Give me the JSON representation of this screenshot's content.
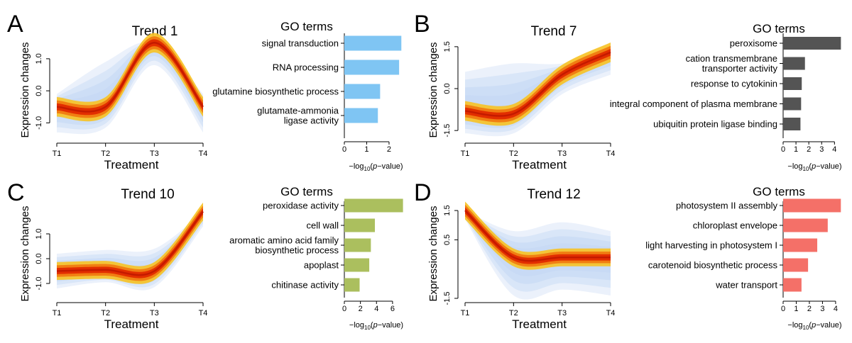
{
  "colors": {
    "trend_line": "#c41a00",
    "band_core": "#e22e00",
    "band_mid": "#f07a10",
    "band_outer": "#f7c224",
    "envelope": "#c5d8f4",
    "axis": "#000000"
  },
  "chart_data": [
    {
      "type": "line",
      "panel_letter": "A",
      "title": "Trend 1",
      "xlabel": "Treatment",
      "ylabel": "Expression changes",
      "x": [
        "T1",
        "T2",
        "T3",
        "T4"
      ],
      "trend_values": [
        -0.5,
        -0.5,
        1.5,
        -0.5
      ],
      "envelope_upper": [
        -0.1,
        0.9,
        1.5,
        -0.1
      ],
      "envelope_lower": [
        -1.3,
        -1.15,
        0.8,
        -1.3
      ],
      "ylim": [
        -1.5,
        1.55
      ],
      "yticks": [
        -1.0,
        0.0,
        1.0
      ],
      "ytick_labels": [
        "-1.0",
        "0.0",
        "1.0"
      ],
      "go": {
        "title": "GO terms",
        "xlabel": "−log10(p−value)",
        "color": "#7fc5f3",
        "xlim": [
          0,
          2.7
        ],
        "xticks": [
          0,
          1,
          2
        ],
        "terms": [
          {
            "lines": [
              "signal transduction"
            ],
            "value": 2.55
          },
          {
            "lines": [
              "RNA processing"
            ],
            "value": 2.45
          },
          {
            "lines": [
              "glutamine biosynthetic process"
            ],
            "value": 1.6
          },
          {
            "lines": [
              "glutamate-ammonia",
              "ligase activity"
            ],
            "value": 1.5
          }
        ]
      }
    },
    {
      "type": "line",
      "panel_letter": "B",
      "title": "Trend 7",
      "xlabel": "Treatment",
      "ylabel": "Expression changes",
      "x": [
        "T1",
        "T2",
        "T3",
        "T4"
      ],
      "trend_values": [
        -0.8,
        -0.9,
        0.5,
        1.3
      ],
      "envelope_upper": [
        0.6,
        0.9,
        0.9,
        1.4
      ],
      "envelope_lower": [
        -1.6,
        -1.6,
        -0.2,
        0.5
      ],
      "ylim": [
        -1.8,
        1.7
      ],
      "yticks": [
        -1.5,
        0.0,
        1.5
      ],
      "ytick_labels": [
        "-1.5",
        "0.0",
        "1.5"
      ],
      "go": {
        "title": "GO terms",
        "xlabel": "−log10(p−value)",
        "color": "#545454",
        "xlim": [
          0,
          4.7
        ],
        "xticks": [
          0,
          1,
          2,
          3,
          4
        ],
        "terms": [
          {
            "lines": [
              "peroxisome"
            ],
            "value": 4.5
          },
          {
            "lines": [
              "cation transmembrane",
              "transporter activity"
            ],
            "value": 1.7
          },
          {
            "lines": [
              "response to cytokinin"
            ],
            "value": 1.45
          },
          {
            "lines": [
              "integral component of plasma membrane"
            ],
            "value": 1.4
          },
          {
            "lines": [
              "ubiquitin protein ligase binding"
            ],
            "value": 1.35
          }
        ]
      }
    },
    {
      "type": "line",
      "panel_letter": "C",
      "title": "Trend 10",
      "xlabel": "Treatment",
      "ylabel": "Expression changes",
      "x": [
        "T1",
        "T2",
        "T3",
        "T4"
      ],
      "trend_values": [
        -0.5,
        -0.45,
        -0.5,
        1.9
      ],
      "envelope_upper": [
        0.2,
        0.35,
        0.4,
        1.9
      ],
      "envelope_lower": [
        -1.2,
        -0.95,
        -1.15,
        1.3
      ],
      "ylim": [
        -1.6,
        2.0
      ],
      "yticks": [
        -1.0,
        0.0,
        1.0
      ],
      "ytick_labels": [
        "-1.0",
        "0.0",
        "1.0"
      ],
      "go": {
        "title": "GO terms",
        "xlabel": "−log10(p−value)",
        "color": "#abbf5e",
        "xlim": [
          0,
          7.6
        ],
        "xticks": [
          0,
          2,
          4,
          6
        ],
        "terms": [
          {
            "lines": [
              "peroxidase activity"
            ],
            "value": 7.3
          },
          {
            "lines": [
              "cell wall"
            ],
            "value": 3.8
          },
          {
            "lines": [
              "aromatic amino acid family",
              "biosynthetic process"
            ],
            "value": 3.3
          },
          {
            "lines": [
              "apoplast"
            ],
            "value": 3.1
          },
          {
            "lines": [
              "chitinase activity"
            ],
            "value": 1.9
          }
        ]
      }
    },
    {
      "type": "line",
      "panel_letter": "D",
      "title": "Trend 12",
      "xlabel": "Treatment",
      "ylabel": "Expression changes",
      "x": [
        "T1",
        "T2",
        "T3",
        "T4"
      ],
      "trend_values": [
        1.5,
        -0.1,
        -0.1,
        -0.1
      ],
      "envelope_upper": [
        1.5,
        0.8,
        1.1,
        0.8
      ],
      "envelope_lower": [
        1.2,
        -1.4,
        -1.2,
        -1.4
      ],
      "ylim": [
        -1.5,
        1.55
      ],
      "yticks": [
        -1.5,
        0.5,
        1.5
      ],
      "ytick_labels": [
        "-1.5",
        "0.5",
        "1.5"
      ],
      "go": {
        "title": "GO terms",
        "xlabel": "−log10(p−value)",
        "color": "#f47068",
        "xlim": [
          0,
          4.6
        ],
        "xticks": [
          0,
          1,
          2,
          3,
          4
        ],
        "terms": [
          {
            "lines": [
              "photosystem II assembly"
            ],
            "value": 4.4
          },
          {
            "lines": [
              "chloroplast envelope"
            ],
            "value": 3.4
          },
          {
            "lines": [
              "light harvesting in photosystem I"
            ],
            "value": 2.6
          },
          {
            "lines": [
              "carotenoid biosynthetic process"
            ],
            "value": 1.9
          },
          {
            "lines": [
              "water transport"
            ],
            "value": 1.4
          }
        ]
      }
    }
  ]
}
